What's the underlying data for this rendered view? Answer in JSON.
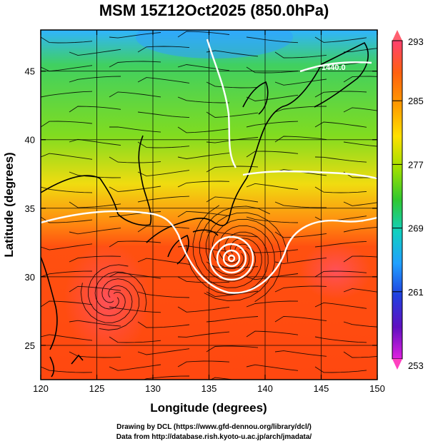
{
  "title": "MSM 15Z12Oct2025 (850.0hPa)",
  "map": {
    "lon_range": [
      120,
      150
    ],
    "lat_range": [
      22.5,
      48
    ],
    "x_ticks": [
      "120",
      "125",
      "130",
      "135",
      "140",
      "145",
      "150"
    ],
    "y_ticks": [
      "25",
      "30",
      "35",
      "40",
      "45"
    ],
    "x_label": "Longitude (degrees)",
    "y_label": "Latitude  (degrees)",
    "contour_label": "1440.0",
    "low_center": {
      "lon": 137.5,
      "lat": 31.7
    }
  },
  "colorbar": {
    "labels": [
      "293",
      "285",
      "277",
      "269",
      "261",
      "253"
    ],
    "stops": [
      "#ff4070",
      "#ff6010",
      "#ff9a00",
      "#ffe000",
      "#a0e000",
      "#30c830",
      "#10d0c0",
      "#20a0ff",
      "#2040e0",
      "#6010c0",
      "#e020e0"
    ],
    "top_triangle_color": "#ff6070",
    "bottom_triangle_color": "#ff40c0"
  },
  "credits": {
    "line1": "Drawing by DCL (https://www.gfd-dennou.org/library/dcl/)",
    "line2": "Data from http://database.rish.kyoto-u.ac.jp/arch/jmadata/"
  }
}
